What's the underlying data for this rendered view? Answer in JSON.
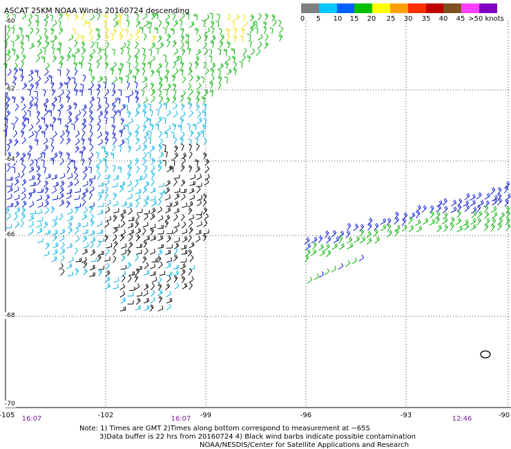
{
  "title": "ASCAT 25KM NOAA Winds 20160724 descending",
  "legend": {
    "labels": [
      "0",
      "5",
      "10",
      "15",
      "20",
      "25",
      "30",
      "35",
      "40",
      "45",
      ">50 knots"
    ],
    "colors": [
      "#7f7f7f",
      "#00c8ff",
      "#0060ff",
      "#00c000",
      "#ffff00",
      "#ffa000",
      "#ff3000",
      "#c00000",
      "#805020",
      "#ff40ff",
      "#8000c0"
    ]
  },
  "lat_labels": [
    "-60",
    "-62",
    "-64",
    "-66",
    "-68",
    "-70"
  ],
  "lon_labels": [
    "-105",
    "-102",
    "-99",
    "-96",
    "-93",
    "-90"
  ],
  "time_labels": [
    "16:07",
    "16:07",
    "12:46"
  ],
  "notes": {
    "line1": "Note: 1) Times are GMT 2)Times along bottom correspond to measurement at ~65S",
    "line2": "3)Data buffer is 22 hrs from 20160724 4) Black wind barbs indicate possible contamination",
    "line3": "NOAA/NESDIS/Center for Satellite Applications and Research"
  },
  "colors": {
    "grid": "#000000",
    "barb_yellow": "#f0e000",
    "barb_green": "#00b000",
    "barb_blue": "#0010d0",
    "barb_cyan": "#00b0e0",
    "barb_black": "#000000"
  }
}
